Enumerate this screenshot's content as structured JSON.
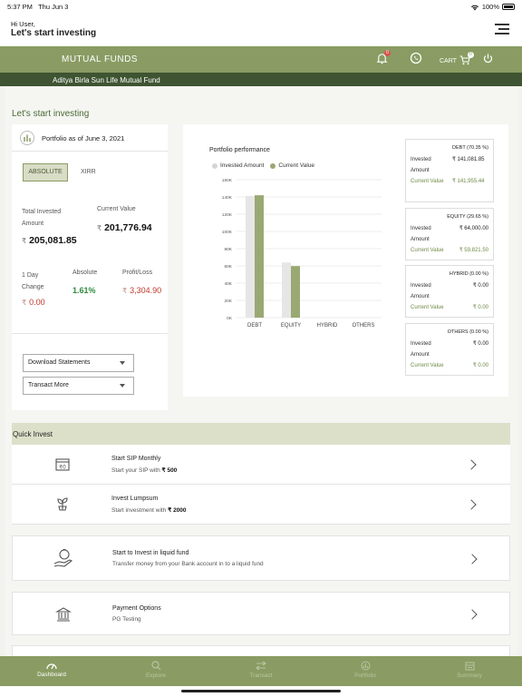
{
  "status_bar": {
    "time": "5:37 PM",
    "date": "Thu Jun 3",
    "battery": "100%"
  },
  "header": {
    "greeting": "Hi  User,",
    "subtitle": "Let's start investing"
  },
  "nav": {
    "title": "MUTUAL FUNDS",
    "cart_label": "CART",
    "cart_count": "0",
    "notification_count": "0"
  },
  "fund_house": "Aditya Birla Sun Life Mutual Fund",
  "main": {
    "heading": "Let's start investing",
    "portfolio": {
      "as_of": "Portfolio as of June 3, 2021",
      "tabs": [
        "ABSOLUTE",
        "XIRR"
      ],
      "total_invested_label": "Total Invested Amount",
      "total_invested_value": "205,081.85",
      "current_value_label": "Current Value",
      "current_value": "201,776.94",
      "one_day_label": "1 Day Change",
      "one_day_value": "0.00",
      "absolute_label": "Absolute",
      "absolute_value": "1.61%",
      "pl_label": "Profit/Loss",
      "pl_value": "3,304.90",
      "currency": "₹",
      "download_label": "Download Statements",
      "transact_label": "Transact More"
    }
  },
  "chart_data": {
    "type": "bar",
    "title": "Portfolio performance",
    "categories": [
      "DEBT",
      "EQUITY",
      "HYBRID",
      "OTHERS"
    ],
    "series": [
      {
        "name": "Invested Amount",
        "values": [
          141081.85,
          64000,
          0,
          0
        ],
        "color": "#e6e6e6"
      },
      {
        "name": "Current Value",
        "values": [
          141955.44,
          59821.5,
          0,
          0
        ],
        "color": "#9aa873"
      }
    ],
    "ylim": [
      0,
      160000
    ],
    "yticks": [
      "0K",
      "20K",
      "40K",
      "60K",
      "80K",
      "100K",
      "120K",
      "140K",
      "160K"
    ],
    "legend": "top-left",
    "grid": true
  },
  "allocations": [
    {
      "title": "DEBT (70.35 %)",
      "invested_label": "Invested Amount",
      "invested": "₹ 141,081.85",
      "current_label": "Current Value",
      "current": "₹ 141,955.44"
    },
    {
      "title": "EQUITY (29.65 %)",
      "invested_label": "Invested Amount",
      "invested": "₹ 64,000.00",
      "current_label": "Current Value",
      "current": "₹ 59,821.50"
    },
    {
      "title": "HYBRID (0.00 %)",
      "invested_label": "Invested Amount",
      "invested": "₹ 0.00",
      "current_label": "Current Value",
      "current": "₹ 0.00"
    },
    {
      "title": "OTHERS (0.00 %)",
      "invested_label": "Invested Amount",
      "invested": "₹ 0.00",
      "current_label": "Current Value",
      "current": "₹ 0.00"
    }
  ],
  "quick_invest": {
    "title": "Quick Invest",
    "items": [
      {
        "title": "Start SIP Monthly",
        "sub": "Start your SIP with ",
        "amount": "₹ 500"
      },
      {
        "title": "Invest Lumpsum",
        "sub": "Start investment with ",
        "amount": "₹ 2000"
      },
      {
        "title": "Start to Invest in liquid fund",
        "sub": "Transfer money from your Bank account in to a liquid fund",
        "amount": ""
      },
      {
        "title": "Payment Options",
        "sub": "PG Testing",
        "amount": ""
      }
    ]
  },
  "tabs": [
    "Dashboard",
    "Explore",
    "Transact",
    "Portfolio",
    "Summary"
  ]
}
